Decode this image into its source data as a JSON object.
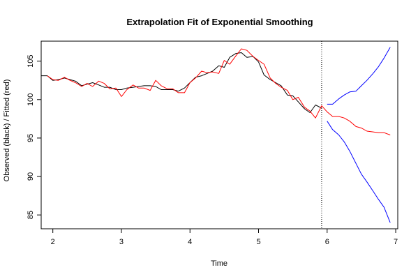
{
  "chart_data": {
    "type": "line",
    "title": "Extrapolation Fit of Exponential Smoothing",
    "xlabel": "Time",
    "ylabel": "Observed (black) / Fitted (red)",
    "xlim": [
      1.83,
      7.03
    ],
    "ylim": [
      83.2,
      107.6
    ],
    "x_ticks": [
      2,
      3,
      4,
      5,
      6,
      7
    ],
    "y_ticks": [
      85,
      90,
      95,
      100,
      105
    ],
    "x_tick_labels": [
      "2",
      "3",
      "4",
      "5",
      "6",
      "7"
    ],
    "y_tick_labels": [
      "85",
      "90",
      "95",
      "100",
      "105"
    ],
    "grid": false,
    "legend": "none",
    "forecast_origin": 5.92,
    "colors": {
      "observed": "#000000",
      "fitted": "#ff0000",
      "forecast": "#0000ff",
      "divider": "#000000"
    },
    "series": [
      {
        "key": "observed",
        "points": [
          [
            1.83,
            103.1
          ],
          [
            1.92,
            103.1
          ],
          [
            2.0,
            102.5
          ],
          [
            2.08,
            102.6
          ],
          [
            2.17,
            102.8
          ],
          [
            2.25,
            102.6
          ],
          [
            2.33,
            102.4
          ],
          [
            2.42,
            101.8
          ],
          [
            2.5,
            102.0
          ],
          [
            2.58,
            102.2
          ],
          [
            2.67,
            101.9
          ],
          [
            2.75,
            101.6
          ],
          [
            2.83,
            101.6
          ],
          [
            2.92,
            101.3
          ],
          [
            3.0,
            101.3
          ],
          [
            3.08,
            101.5
          ],
          [
            3.17,
            101.6
          ],
          [
            3.25,
            101.7
          ],
          [
            3.33,
            101.8
          ],
          [
            3.42,
            101.8
          ],
          [
            3.5,
            101.7
          ],
          [
            3.58,
            101.3
          ],
          [
            3.67,
            101.3
          ],
          [
            3.75,
            101.3
          ],
          [
            3.83,
            101.1
          ],
          [
            3.92,
            101.5
          ],
          [
            4.0,
            102.2
          ],
          [
            4.08,
            102.9
          ],
          [
            4.17,
            103.1
          ],
          [
            4.25,
            103.4
          ],
          [
            4.33,
            103.7
          ],
          [
            4.42,
            104.4
          ],
          [
            4.5,
            104.2
          ],
          [
            4.58,
            105.5
          ],
          [
            4.67,
            106.0
          ],
          [
            4.75,
            106.1
          ],
          [
            4.83,
            105.5
          ],
          [
            4.92,
            105.6
          ],
          [
            5.0,
            104.9
          ],
          [
            5.08,
            103.2
          ],
          [
            5.17,
            102.6
          ],
          [
            5.25,
            102.2
          ],
          [
            5.33,
            101.8
          ],
          [
            5.42,
            100.6
          ],
          [
            5.5,
            100.5
          ],
          [
            5.58,
            99.7
          ],
          [
            5.67,
            98.8
          ],
          [
            5.75,
            98.3
          ],
          [
            5.83,
            99.3
          ],
          [
            5.92,
            98.9
          ]
        ]
      },
      {
        "key": "fitted",
        "points": [
          [
            1.92,
            103.1
          ],
          [
            2.0,
            102.6
          ],
          [
            2.08,
            102.5
          ],
          [
            2.17,
            102.9
          ],
          [
            2.25,
            102.5
          ],
          [
            2.33,
            102.2
          ],
          [
            2.42,
            101.7
          ],
          [
            2.5,
            102.1
          ],
          [
            2.58,
            101.7
          ],
          [
            2.67,
            102.4
          ],
          [
            2.75,
            102.1
          ],
          [
            2.83,
            101.4
          ],
          [
            2.92,
            101.5
          ],
          [
            3.0,
            100.4
          ],
          [
            3.08,
            101.3
          ],
          [
            3.17,
            101.9
          ],
          [
            3.25,
            101.5
          ],
          [
            3.33,
            101.5
          ],
          [
            3.42,
            101.2
          ],
          [
            3.5,
            102.5
          ],
          [
            3.58,
            101.8
          ],
          [
            3.67,
            101.4
          ],
          [
            3.75,
            101.4
          ],
          [
            3.83,
            100.9
          ],
          [
            3.92,
            100.9
          ],
          [
            4.0,
            102.2
          ],
          [
            4.08,
            102.8
          ],
          [
            4.17,
            103.7
          ],
          [
            4.25,
            103.5
          ],
          [
            4.33,
            103.6
          ],
          [
            4.42,
            103.4
          ],
          [
            4.5,
            105.1
          ],
          [
            4.58,
            104.6
          ],
          [
            4.67,
            105.7
          ],
          [
            4.75,
            106.6
          ],
          [
            4.83,
            106.4
          ],
          [
            4.92,
            105.6
          ],
          [
            5.0,
            105.1
          ],
          [
            5.08,
            104.6
          ],
          [
            5.17,
            102.8
          ],
          [
            5.25,
            102.1
          ],
          [
            5.33,
            101.6
          ],
          [
            5.42,
            101.2
          ],
          [
            5.5,
            100.0
          ],
          [
            5.58,
            100.3
          ],
          [
            5.67,
            99.0
          ],
          [
            5.75,
            98.5
          ],
          [
            5.83,
            97.6
          ],
          [
            5.92,
            99.2
          ],
          [
            6.0,
            98.4
          ],
          [
            6.08,
            97.8
          ],
          [
            6.17,
            97.8
          ],
          [
            6.25,
            97.6
          ],
          [
            6.33,
            97.2
          ],
          [
            6.42,
            96.5
          ],
          [
            6.5,
            96.3
          ],
          [
            6.58,
            95.9
          ],
          [
            6.67,
            95.8
          ],
          [
            6.75,
            95.7
          ],
          [
            6.83,
            95.7
          ],
          [
            6.92,
            95.4
          ]
        ]
      },
      {
        "key": "upper",
        "points": [
          [
            6.0,
            99.4
          ],
          [
            6.08,
            99.4
          ],
          [
            6.17,
            100.1
          ],
          [
            6.25,
            100.6
          ],
          [
            6.33,
            101.0
          ],
          [
            6.42,
            101.1
          ],
          [
            6.5,
            101.8
          ],
          [
            6.58,
            102.5
          ],
          [
            6.67,
            103.4
          ],
          [
            6.75,
            104.3
          ],
          [
            6.83,
            105.4
          ],
          [
            6.92,
            106.8
          ]
        ]
      },
      {
        "key": "lower",
        "points": [
          [
            6.0,
            97.2
          ],
          [
            6.08,
            96.1
          ],
          [
            6.17,
            95.4
          ],
          [
            6.25,
            94.5
          ],
          [
            6.33,
            93.3
          ],
          [
            6.42,
            91.7
          ],
          [
            6.5,
            90.3
          ],
          [
            6.58,
            89.3
          ],
          [
            6.67,
            88.1
          ],
          [
            6.75,
            87.0
          ],
          [
            6.83,
            86.0
          ],
          [
            6.92,
            84.0
          ]
        ]
      }
    ]
  }
}
